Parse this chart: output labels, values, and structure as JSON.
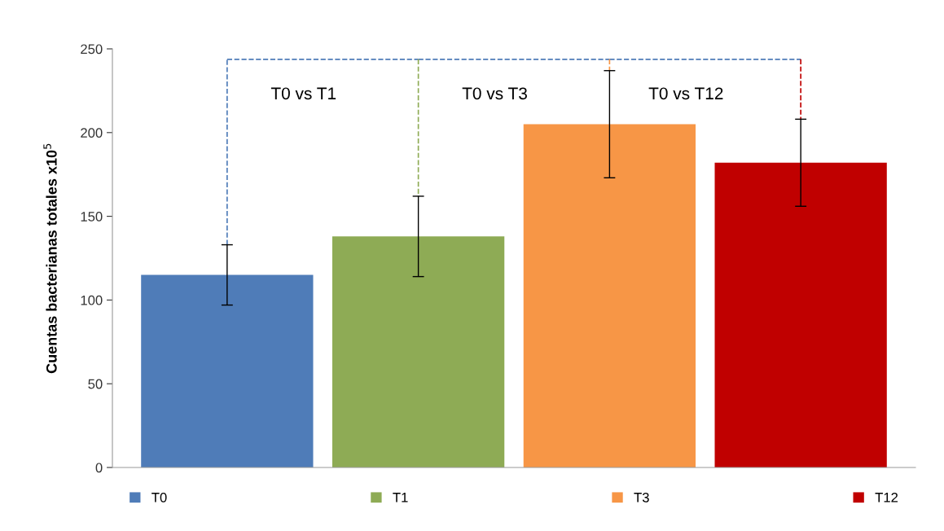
{
  "chart_data": {
    "type": "bar",
    "ylabel": "Cuentas bacterianas totales x10$^{5}$",
    "categories": [
      null,
      null,
      null,
      null
    ],
    "series": [
      {
        "name": "T0",
        "color": "#4f7cb8",
        "values": [
          115,
          null,
          null,
          null
        ],
        "errors": [
          18,
          null,
          null,
          null
        ]
      },
      {
        "name": "T1",
        "color": "#8eab55",
        "values": [
          null,
          138,
          null,
          null
        ],
        "errors": [
          null,
          24,
          null,
          null
        ]
      },
      {
        "name": "T3",
        "color": "#f79646",
        "values": [
          null,
          null,
          205,
          null
        ],
        "errors": [
          null,
          null,
          32,
          null
        ]
      },
      {
        "name": "T12",
        "color": "#c00000",
        "values": [
          null,
          null,
          null,
          182
        ],
        "errors": [
          null,
          null,
          null,
          26
        ]
      }
    ],
    "ylim": [
      0,
      250
    ],
    "yticks": [
      0,
      50,
      100,
      150,
      200,
      250
    ],
    "tick_labels": "y",
    "grid": false,
    "legend": "bottom",
    "annotations": [
      "T0 vs T1",
      "T0 vs T3",
      "T0 vs T12"
    ]
  }
}
